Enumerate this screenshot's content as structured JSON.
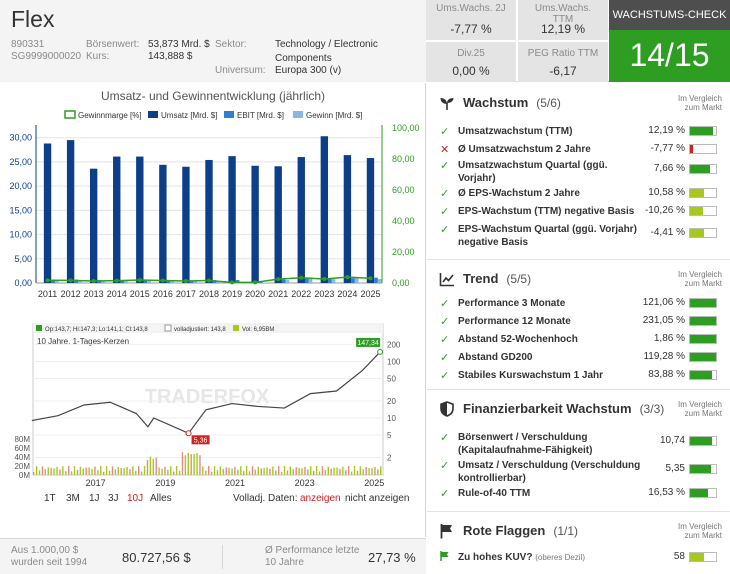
{
  "company": {
    "name": "Flex",
    "id_number": "890331",
    "isin": "SG9999000020",
    "market_cap_label": "Börsenwert:",
    "market_cap": "53,873 Mrd. $",
    "price_label": "Kurs:",
    "price": "143,888 $",
    "sector_label": "Sektor:",
    "sector": "Technology / Electronic Components",
    "universe_label": "Universum:",
    "universe": "Europa 300 (v)"
  },
  "metrics": [
    {
      "label": "Ums.Wachs. 2J",
      "value": "-7,77 %"
    },
    {
      "label": "Ums.Wachs. TTM",
      "value": "12,19 %"
    },
    {
      "label": "Div.25",
      "value": "0,00 %"
    },
    {
      "label": "PEG Ratio TTM",
      "value": "-6,17"
    }
  ],
  "check": {
    "title": "WACHSTUMS-CHECK",
    "score": "14/15",
    "color": "#2e9e22"
  },
  "chart_title": "Umsatz- und Gewinnentwicklung (jährlich)",
  "chart_data": [
    {
      "type": "bar",
      "title": "Umsatz- und Gewinnentwicklung (jährlich)",
      "categories": [
        "2011",
        "2012",
        "2013",
        "2014",
        "2015",
        "2016",
        "2017",
        "2018",
        "2019",
        "2020",
        "2021",
        "2022",
        "2023",
        "2024",
        "2025"
      ],
      "series": [
        {
          "name": "Umsatz [Mrd. $]",
          "color": "#0d3e8a",
          "values": [
            28.8,
            29.5,
            23.6,
            26.1,
            26.1,
            24.4,
            24.0,
            25.4,
            26.2,
            24.2,
            24.1,
            26.0,
            30.3,
            26.4,
            25.8
          ]
        },
        {
          "name": "EBIT [Mrd. $]",
          "color": "#2f7fd0",
          "values": [
            0.7,
            0.7,
            0.6,
            0.6,
            0.6,
            0.6,
            0.5,
            0.6,
            0.6,
            0.4,
            0.7,
            0.9,
            1.0,
            1.0,
            1.1
          ]
        },
        {
          "name": "Gewinn [Mrd. $]",
          "color": "#8ab8e6",
          "values": [
            0.5,
            0.5,
            0.3,
            0.4,
            0.5,
            0.4,
            0.3,
            0.4,
            0.1,
            0.1,
            0.6,
            0.9,
            0.8,
            1.0,
            0.8
          ]
        },
        {
          "name": "Gewinnmarge [%]",
          "color": "#2e9e22",
          "type": "line",
          "axis": "right",
          "values": [
            1.8,
            1.7,
            1.3,
            1.5,
            1.9,
            1.6,
            1.3,
            1.6,
            0.4,
            0.4,
            2.5,
            3.4,
            2.6,
            3.8,
            3.1
          ]
        }
      ],
      "ylim": [
        0,
        32
      ],
      "y_ticks": [
        "0,00",
        "5,00",
        "10,00",
        "15,00",
        "20,00",
        "25,00",
        "30,00"
      ],
      "y2lim": [
        0,
        100
      ],
      "y2_ticks": [
        "0,00",
        "20,00",
        "40,00",
        "60,00",
        "80,00",
        "100,00"
      ],
      "legend_placement": "top",
      "grid": true
    },
    {
      "type": "line",
      "title": "10 Jahre, 1-Tages-Kerzen",
      "header_info": "Op:143,7; Hi:147,3; Lo:141,1; Cl:143,8",
      "header_adjusted": "volladjustiert: 143,8",
      "header_vol": "Vol: 6,95BM",
      "scale": "log",
      "x_ticks": [
        "2017",
        "2019",
        "2021",
        "2023",
        "2025"
      ],
      "y_ticks": [
        "2",
        "5",
        "10",
        "20",
        "50",
        "100",
        "200"
      ],
      "vol_ticks": [
        "0M",
        "20M",
        "40M",
        "60M",
        "80M"
      ],
      "x": [
        "2015-09",
        "2016-06",
        "2017-03",
        "2017-12",
        "2018-09",
        "2019-01",
        "2019-03",
        "2020-03",
        "2020-09",
        "2021-06",
        "2022-03",
        "2022-12",
        "2023-09",
        "2024-06",
        "2025-03",
        "2025-09"
      ],
      "y": [
        9,
        11,
        17,
        19,
        12,
        7,
        10,
        5.36,
        14,
        18,
        16,
        15,
        27,
        30,
        70,
        147.34
      ],
      "min_label": "5,36",
      "max_label": "147,34",
      "watermark": "TRADERFOX"
    }
  ],
  "ranges": {
    "items": [
      "1T",
      "3M",
      "1J",
      "3J",
      "10J",
      "Alles"
    ],
    "active": "10J",
    "adj_label": "Volladj. Daten:",
    "adj_on": "anzeigen",
    "adj_off": "nicht anzeigen"
  },
  "bottom": {
    "invest_label": "Aus 1.000,00 $ wurden seit 1994",
    "invest_value": "80.727,56 $",
    "perf_label": "Ø Performance letzte 10 Jahre",
    "perf_value": "27,73 %"
  },
  "compare_label": "Im Vergleich zum Markt",
  "sections": [
    {
      "title": "Wachstum",
      "count": "(5/6)",
      "icon": "sprout-icon",
      "items": [
        {
          "ok": true,
          "label": "Umsatzwachstum (TTM)",
          "value": "12,19 %",
          "level": 0.9
        },
        {
          "ok": false,
          "label": "Ø Umsatzwachstum 2 Jahre",
          "value": "-7,77 %",
          "level": 0.1
        },
        {
          "ok": true,
          "label": "Umsatzwachstum Quartal (ggü. Vorjahr)",
          "value": "7,66 %",
          "level": 0.75
        },
        {
          "ok": true,
          "label": "Ø EPS-Wachstum 2 Jahre",
          "value": "10,58 %",
          "level": 0.55
        },
        {
          "ok": true,
          "label": "EPS-Wachstum (TTM) negative Basis",
          "value": "-10,26 %",
          "level": 0.5
        },
        {
          "ok": true,
          "label": "EPS-Wachstum Quartal (ggü. Vorjahr) negative Basis",
          "value": "-4,41 %",
          "level": 0.55
        }
      ]
    },
    {
      "title": "Trend",
      "count": "(5/5)",
      "icon": "trend-chart-icon",
      "items": [
        {
          "ok": true,
          "label": "Performance 3 Monate",
          "value": "121,06 %",
          "level": 1.0
        },
        {
          "ok": true,
          "label": "Performance 12 Monate",
          "value": "231,05 %",
          "level": 1.0
        },
        {
          "ok": true,
          "label": "Abstand 52-Wochenhoch",
          "value": "1,86 %",
          "level": 1.0
        },
        {
          "ok": true,
          "label": "Abstand GD200",
          "value": "119,28 %",
          "level": 1.0
        },
        {
          "ok": true,
          "label": "Stabiles Kurswachstum 1 Jahr",
          "value": "83,88 %",
          "level": 0.85
        }
      ]
    },
    {
      "title": "Finanzierbarkeit Wachstum",
      "count": "(3/3)",
      "icon": "shield-icon",
      "items": [
        {
          "ok": true,
          "label": "Börsenwert / Verschuldung (Kapitalaufnahme-Fähigkeit)",
          "value": "10,74",
          "level": 0.85
        },
        {
          "ok": true,
          "label": "Umsatz / Verschuldung (Verschuldung kontrollierbar)",
          "value": "5,35",
          "level": 0.8
        },
        {
          "ok": true,
          "label": "Rule-of-40 TTM",
          "value": "16,53 %",
          "level": 0.7
        }
      ]
    },
    {
      "title": "Rote Flaggen",
      "count": "(1/1)",
      "icon": "flag-icon",
      "items": [
        {
          "ok": true,
          "flag": true,
          "label": "Zu hohes KUV?",
          "sublabel": "(oberes Dezil)",
          "value": "58",
          "level": 0.55
        }
      ]
    }
  ],
  "colors": {
    "good": "#2e9e22",
    "light_good": "#a6c81f",
    "bad": "#cc2222",
    "bar_navy": "#0d3e8a"
  }
}
